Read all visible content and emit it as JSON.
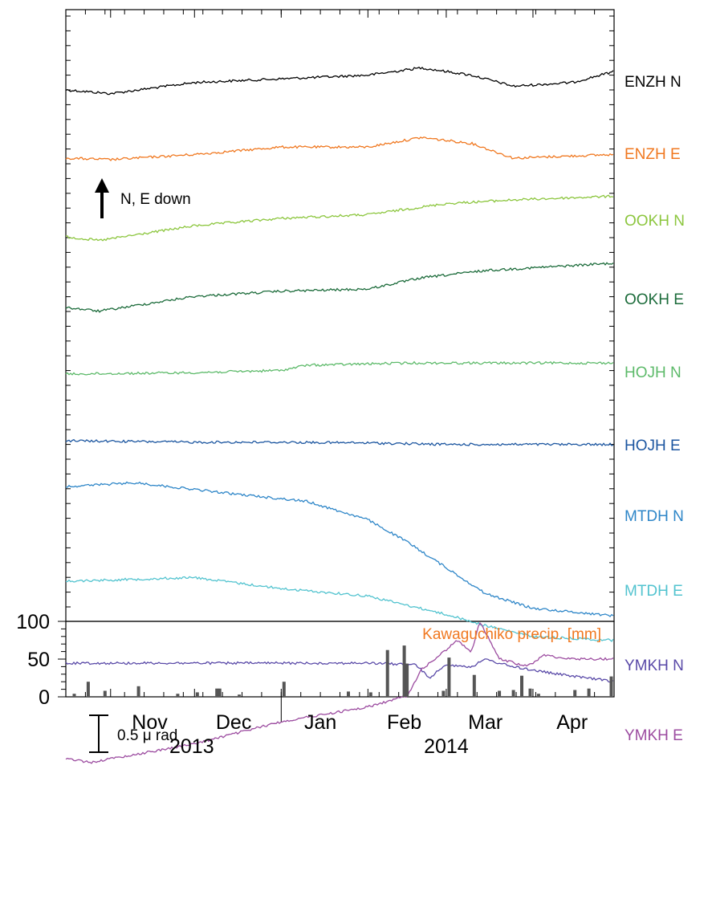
{
  "chart_data": {
    "type": "line",
    "x_start": "2013-10-16",
    "x_end": "2014-04-30",
    "month_labels": [
      "Nov",
      "Dec",
      "Jan",
      "Feb",
      "Mar",
      "Apr"
    ],
    "year_labels": [
      "2013",
      "2014"
    ],
    "direction_note": "N, E down",
    "scale_label": "0.5 μ rad",
    "scale_value": 0.5,
    "series": [
      {
        "name": "ENZH N",
        "color": "#000000",
        "points": [
          [
            "2013-10-16",
            0
          ],
          [
            "2013-11-01",
            -0.05
          ],
          [
            "2013-12-01",
            0.1
          ],
          [
            "2014-01-01",
            0.15
          ],
          [
            "2014-02-01",
            0.2
          ],
          [
            "2014-02-20",
            0.3
          ],
          [
            "2014-03-10",
            0.2
          ],
          [
            "2014-03-25",
            0.05
          ],
          [
            "2014-04-15",
            0.1
          ],
          [
            "2014-04-30",
            0.25
          ]
        ]
      },
      {
        "name": "ENZH E",
        "color": "#f07820",
        "points": [
          [
            "2013-10-16",
            0
          ],
          [
            "2013-11-01",
            -0.02
          ],
          [
            "2013-12-01",
            0.05
          ],
          [
            "2014-01-01",
            0.15
          ],
          [
            "2014-02-01",
            0.15
          ],
          [
            "2014-02-20",
            0.28
          ],
          [
            "2014-03-10",
            0.2
          ],
          [
            "2014-03-25",
            0.0
          ],
          [
            "2014-04-30",
            0.05
          ]
        ]
      },
      {
        "name": "OOKH N",
        "color": "#8cc63e",
        "points": [
          [
            "2013-10-16",
            0
          ],
          [
            "2013-10-28",
            -0.05
          ],
          [
            "2013-12-01",
            0.15
          ],
          [
            "2014-01-01",
            0.25
          ],
          [
            "2014-02-01",
            0.3
          ],
          [
            "2014-03-01",
            0.45
          ],
          [
            "2014-03-25",
            0.5
          ],
          [
            "2014-04-30",
            0.55
          ]
        ]
      },
      {
        "name": "OOKH E",
        "color": "#1b6b3a",
        "points": [
          [
            "2013-10-16",
            0
          ],
          [
            "2013-10-28",
            -0.05
          ],
          [
            "2013-12-01",
            0.15
          ],
          [
            "2014-01-01",
            0.22
          ],
          [
            "2014-02-01",
            0.25
          ],
          [
            "2014-02-20",
            0.4
          ],
          [
            "2014-03-15",
            0.5
          ],
          [
            "2014-04-30",
            0.6
          ]
        ]
      },
      {
        "name": "HOJH N",
        "color": "#5dba6a",
        "points": [
          [
            "2013-10-16",
            0
          ],
          [
            "2013-12-01",
            0.02
          ],
          [
            "2014-01-01",
            0.05
          ],
          [
            "2014-01-10",
            0.12
          ],
          [
            "2014-02-15",
            0.15
          ],
          [
            "2014-03-15",
            0.15
          ],
          [
            "2014-04-30",
            0.15
          ]
        ]
      },
      {
        "name": "HOJH E",
        "color": "#1c56a0",
        "points": [
          [
            "2013-10-16",
            0
          ],
          [
            "2013-12-01",
            -0.02
          ],
          [
            "2014-01-01",
            -0.02
          ],
          [
            "2014-02-01",
            -0.03
          ],
          [
            "2014-03-01",
            -0.05
          ],
          [
            "2014-04-30",
            -0.05
          ]
        ]
      },
      {
        "name": "MTDH N",
        "color": "#2e86c8",
        "points": [
          [
            "2013-10-16",
            0
          ],
          [
            "2013-11-10",
            0.05
          ],
          [
            "2013-12-15",
            -0.1
          ],
          [
            "2014-01-10",
            -0.2
          ],
          [
            "2014-02-01",
            -0.45
          ],
          [
            "2014-02-15",
            -0.75
          ],
          [
            "2014-03-01",
            -1.1
          ],
          [
            "2014-03-15",
            -1.45
          ],
          [
            "2014-04-01",
            -1.65
          ],
          [
            "2014-04-30",
            -1.75
          ]
        ]
      },
      {
        "name": "MTDH E",
        "color": "#52c3cf",
        "points": [
          [
            "2013-10-16",
            0
          ],
          [
            "2013-12-01",
            0.05
          ],
          [
            "2014-01-01",
            -0.1
          ],
          [
            "2014-02-01",
            -0.2
          ],
          [
            "2014-03-01",
            -0.45
          ],
          [
            "2014-03-15",
            -0.6
          ],
          [
            "2014-04-01",
            -0.75
          ],
          [
            "2014-04-30",
            -0.8
          ]
        ]
      },
      {
        "name": "YMKH N",
        "color": "#5a4aa8",
        "points": [
          [
            "2013-10-16",
            0
          ],
          [
            "2013-12-01",
            0
          ],
          [
            "2014-01-01",
            0
          ],
          [
            "2014-02-01",
            0
          ],
          [
            "2014-02-18",
            -0.02
          ],
          [
            "2014-02-23",
            -0.2
          ],
          [
            "2014-03-01",
            -0.02
          ],
          [
            "2014-03-10",
            -0.05
          ],
          [
            "2014-03-15",
            0.05
          ],
          [
            "2014-03-25",
            -0.05
          ],
          [
            "2014-04-10",
            -0.15
          ],
          [
            "2014-04-30",
            -0.25
          ]
        ]
      },
      {
        "name": "YMKH E",
        "color": "#9c4ca0",
        "points": [
          [
            "2013-10-16",
            0
          ],
          [
            "2013-10-25",
            -0.05
          ],
          [
            "2013-12-01",
            0.2
          ],
          [
            "2014-01-01",
            0.5
          ],
          [
            "2014-02-01",
            0.7
          ],
          [
            "2014-02-15",
            0.85
          ],
          [
            "2014-02-20",
            1.2
          ],
          [
            "2014-02-25",
            1.35
          ],
          [
            "2014-03-05",
            1.6
          ],
          [
            "2014-03-10",
            1.45
          ],
          [
            "2014-03-13",
            1.85
          ],
          [
            "2014-03-20",
            1.35
          ],
          [
            "2014-03-30",
            1.25
          ],
          [
            "2014-04-05",
            1.4
          ],
          [
            "2014-04-15",
            1.35
          ],
          [
            "2014-04-30",
            1.35
          ]
        ]
      }
    ],
    "precipitation": {
      "label": "Kawaguchiko precip. [mm]",
      "label_color": "#f07820",
      "bar_color": "#555555",
      "ylim": [
        0,
        100
      ],
      "yticks": [
        0,
        50,
        100
      ],
      "bars": [
        [
          "2013-10-19",
          4
        ],
        [
          "2013-10-24",
          20
        ],
        [
          "2013-10-30",
          8
        ],
        [
          "2013-11-11",
          14
        ],
        [
          "2013-11-25",
          4
        ],
        [
          "2013-12-02",
          6
        ],
        [
          "2013-12-09",
          11
        ],
        [
          "2013-12-10",
          11
        ],
        [
          "2013-12-17",
          3
        ],
        [
          "2014-01-02",
          20
        ],
        [
          "2014-01-25",
          7
        ],
        [
          "2014-02-02",
          6
        ],
        [
          "2014-02-08",
          62
        ],
        [
          "2014-02-14",
          68
        ],
        [
          "2014-02-15",
          44
        ],
        [
          "2014-02-28",
          8
        ],
        [
          "2014-03-02",
          52
        ],
        [
          "2014-03-11",
          29
        ],
        [
          "2014-03-20",
          8
        ],
        [
          "2014-03-25",
          9
        ],
        [
          "2014-03-28",
          28
        ],
        [
          "2014-03-31",
          11
        ],
        [
          "2014-04-03",
          4
        ],
        [
          "2014-04-16",
          9
        ],
        [
          "2014-04-21",
          11
        ],
        [
          "2014-04-29",
          27
        ]
      ]
    }
  }
}
